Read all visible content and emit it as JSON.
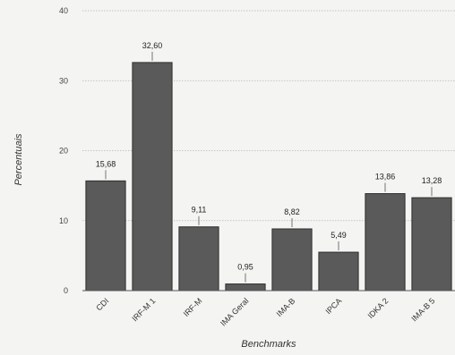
{
  "chart_data": {
    "type": "bar",
    "title": "",
    "xlabel": "Benchmarks",
    "ylabel": "Percentuais",
    "ylim": [
      0,
      40
    ],
    "yticks": [
      0,
      10,
      20,
      30,
      40
    ],
    "grid": true,
    "legend": "none",
    "categories": [
      "CDI",
      "IRF-M 1",
      "IRF-M",
      "IMA Geral",
      "IMA-B",
      "IPCA",
      "IDKA 2",
      "IMA-B 5"
    ],
    "values": [
      15.68,
      32.6,
      9.11,
      0.95,
      8.82,
      5.49,
      13.86,
      13.28
    ],
    "value_labels": [
      "15,68",
      "32,60",
      "9,11",
      "0,95",
      "8,82",
      "5,49",
      "13,86",
      "13,28"
    ],
    "colors": {
      "bar_fill": "#5a5a5a",
      "bar_stroke": "#2e2e2e",
      "grid": "#b5b5b5",
      "axis": "#555555"
    }
  }
}
